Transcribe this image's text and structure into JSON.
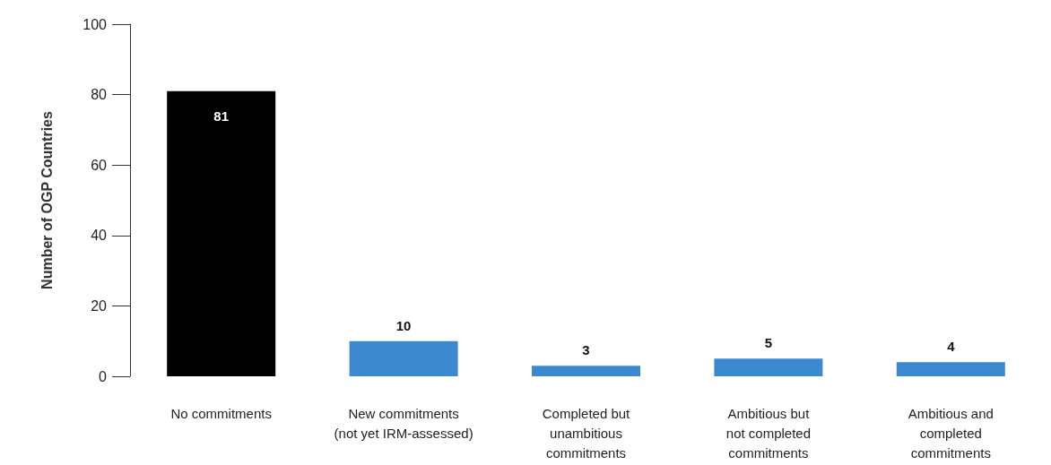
{
  "chart_data": {
    "type": "bar",
    "ylabel": "Number of OGP Countries",
    "categories": [
      "No commitments",
      "New commitments\n(not yet IRM-assessed)",
      "Completed but\nunambitious\ncommitments",
      "Ambitious but\nnot completed\ncommitments",
      "Ambitious and\ncompleted\ncommitments"
    ],
    "values": [
      81,
      10,
      3,
      5,
      4
    ],
    "colors": [
      "#000000",
      "#3d89d0",
      "#3d89d0",
      "#3d89d0",
      "#3d89d0"
    ],
    "ylim": [
      0,
      100
    ],
    "yticks": [
      0,
      20,
      40,
      60,
      80,
      100
    ],
    "grid": false,
    "data_labels": true
  }
}
